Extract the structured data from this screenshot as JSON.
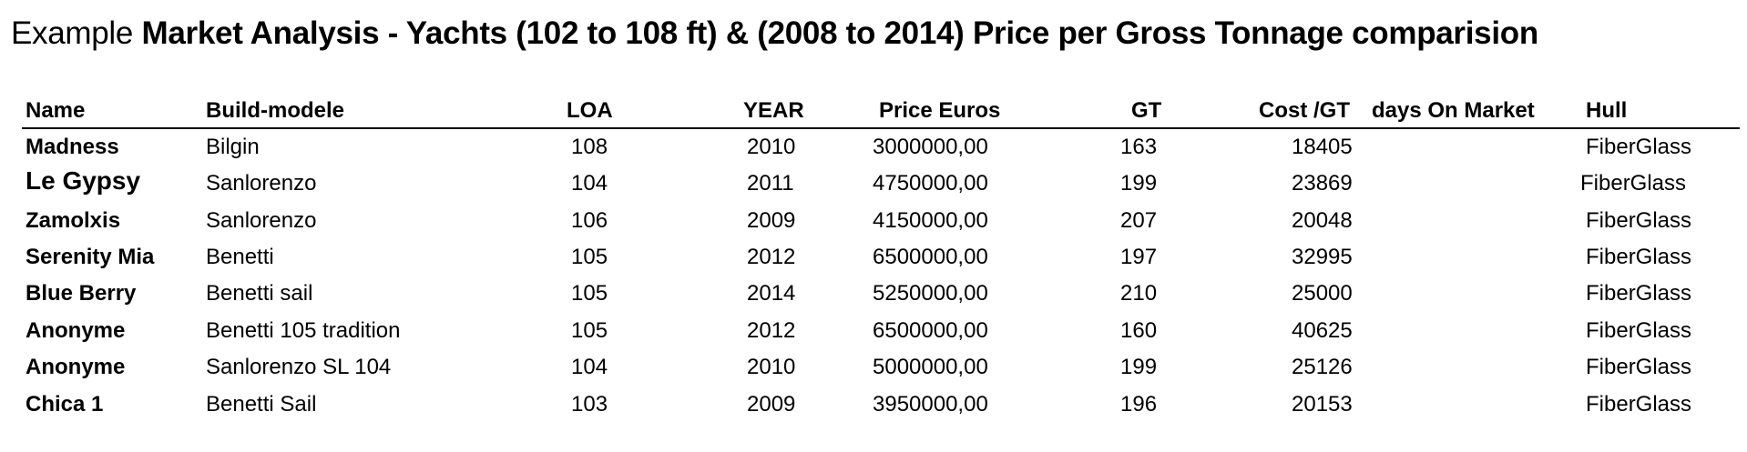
{
  "title": {
    "prefix": "Example",
    "main": "Market Analysis - Yachts (102 to 108 ft) & (2008 to 2014) Price per Gross Tonnage comparision"
  },
  "table": {
    "columns": [
      "Name",
      "Build-modele",
      "LOA",
      "YEAR",
      "Price Euros",
      "GT",
      "Cost /GT",
      "days On Market",
      "Hull"
    ],
    "rows": [
      {
        "name": "Madness",
        "build": "Bilgin",
        "loa": "108",
        "year": "2010",
        "price": "3000000,00",
        "gt": "163",
        "cost": "18405",
        "hull": "FiberGlass"
      },
      {
        "name": "Le  Gypsy",
        "build": "Sanlorenzo",
        "loa": "104",
        "year": "2011",
        "price": "4750000,00",
        "gt": "199",
        "cost": "23869",
        "hull": "FiberGlass"
      },
      {
        "name": "Zamolxis",
        "build": "Sanlorenzo",
        "loa": "106",
        "year": "2009",
        "price": "4150000,00",
        "gt": "207",
        "cost": "20048",
        "hull": "FiberGlass"
      },
      {
        "name": "Serenity Mia",
        "build": "Benetti",
        "loa": "105",
        "year": "2012",
        "price": "6500000,00",
        "gt": "197",
        "cost": "32995",
        "hull": "FiberGlass"
      },
      {
        "name": "Blue Berry",
        "build": "Benetti sail",
        "loa": "105",
        "year": "2014",
        "price": "5250000,00",
        "gt": "210",
        "cost": "25000",
        "hull": "FiberGlass"
      },
      {
        "name": "Anonyme",
        "build": "Benetti 105 tradition",
        "loa": "105",
        "year": "2012",
        "price": "6500000,00",
        "gt": "160",
        "cost": "40625",
        "hull": "FiberGlass"
      },
      {
        "name": "Anonyme",
        "build": "Sanlorenzo SL 104",
        "loa": "104",
        "year": "2010",
        "price": "5000000,00",
        "gt": "199",
        "cost": "25126",
        "hull": "FiberGlass"
      },
      {
        "name": "Chica 1",
        "build": "Benetti Sail",
        "loa": "103",
        "year": "2009",
        "price": "3950000,00",
        "gt": "196",
        "cost": "20153",
        "hull": "FiberGlass"
      }
    ]
  }
}
